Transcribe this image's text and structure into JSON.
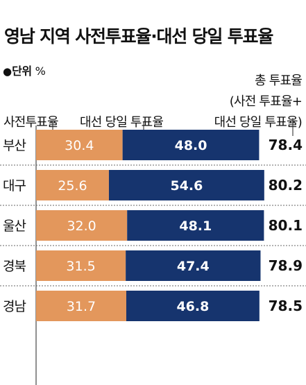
{
  "title": "영남 지역 사전투표율·대선 당일 투표율",
  "unit": {
    "bullet": "●",
    "label": "단위",
    "value": "%"
  },
  "total_header": {
    "line1": "총 투표율",
    "line2": "(사전 투표율+",
    "line3": "대선 당일 투표율)"
  },
  "legend": {
    "early": "사전투표율",
    "election_day": "대선 당일 투표율"
  },
  "colors": {
    "early": "#e3975c",
    "election_day": "#16346e",
    "grid": "#666666",
    "axis": "#222222"
  },
  "chart_data": {
    "type": "bar",
    "stacked": true,
    "orientation": "horizontal",
    "categories": [
      "부산",
      "대구",
      "울산",
      "경북",
      "경남"
    ],
    "series": [
      {
        "name": "사전투표율",
        "values": [
          30.4,
          25.6,
          32.0,
          31.5,
          31.7
        ]
      },
      {
        "name": "대선 당일 투표율",
        "values": [
          48.0,
          54.6,
          48.1,
          47.4,
          46.8
        ]
      }
    ],
    "totals": [
      78.4,
      80.2,
      80.1,
      78.9,
      78.5
    ],
    "title": "영남 지역 사전투표율·대선 당일 투표율",
    "xlabel": "",
    "ylabel": ""
  }
}
